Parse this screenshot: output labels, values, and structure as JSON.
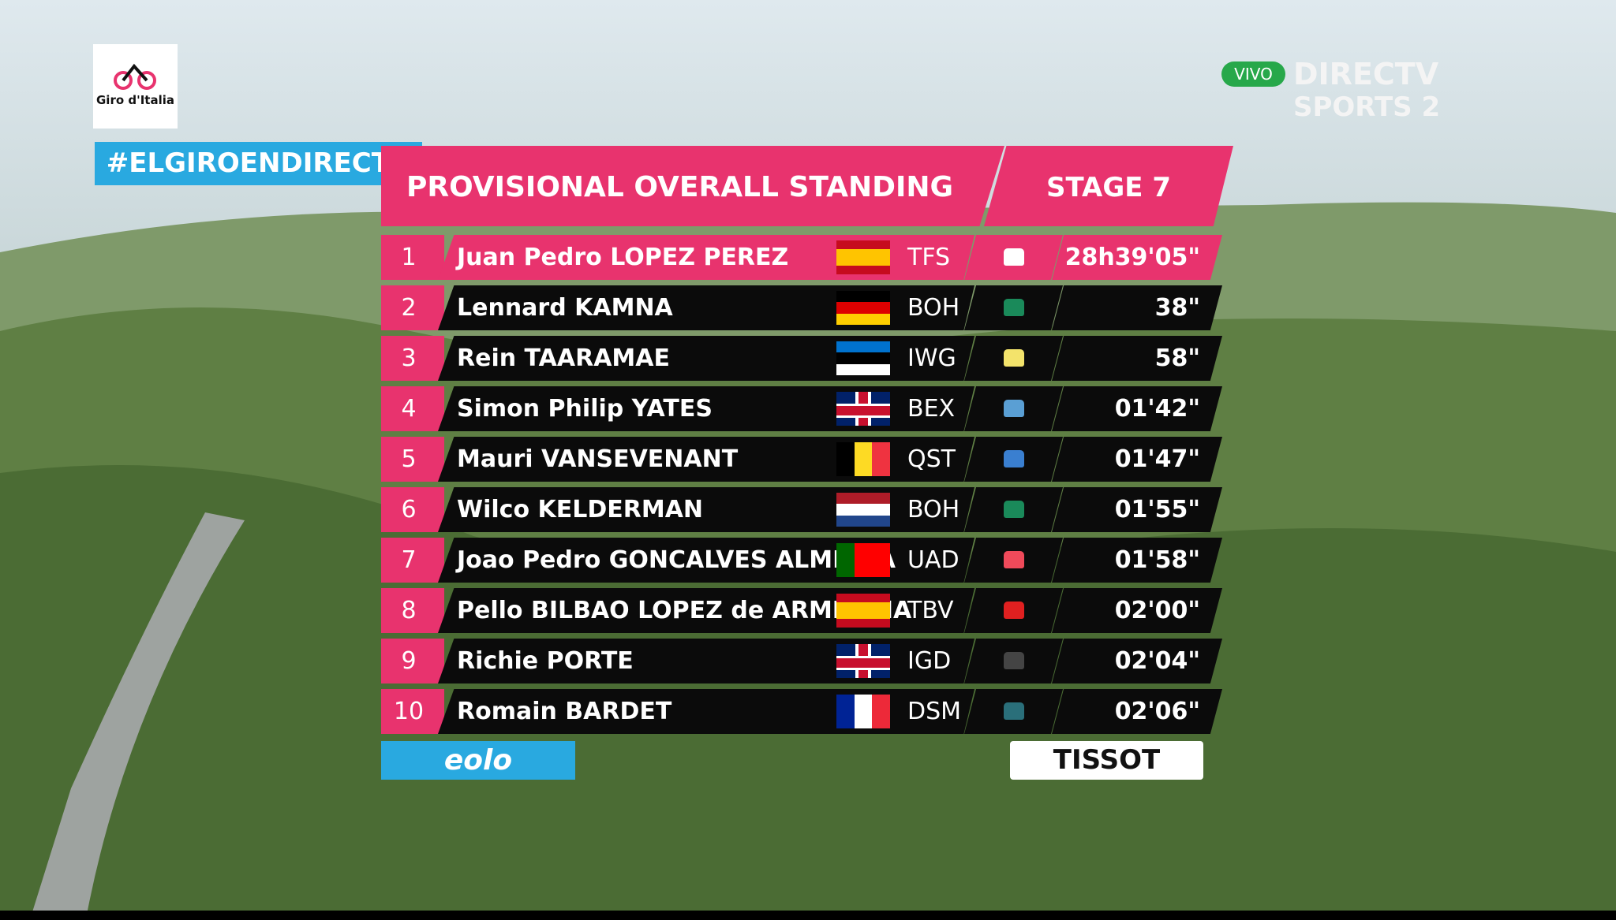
{
  "logo": {
    "text": "Giro d'Italia"
  },
  "hashtag": "#ELGIROENDIRECTV",
  "broadcaster": {
    "live": "VIVO",
    "name": "DIRECTV",
    "channel": "SPORTS 2"
  },
  "header": {
    "title": "PROVISIONAL OVERALL STANDING",
    "stage": "STAGE 7"
  },
  "table": {
    "rows": [
      {
        "rank": 1,
        "name": "Juan Pedro LOPEZ PEREZ",
        "team": "TFS",
        "time": "28h39'05\""
      },
      {
        "rank": 2,
        "name": "Lennard KAMNA",
        "team": "BOH",
        "time": "38\""
      },
      {
        "rank": 3,
        "name": "Rein TAARAMAE",
        "team": "IWG",
        "time": "58\""
      },
      {
        "rank": 4,
        "name": "Simon Philip YATES",
        "team": "BEX",
        "time": "01'42\""
      },
      {
        "rank": 5,
        "name": "Mauri VANSEVENANT",
        "team": "QST",
        "time": "01'47\""
      },
      {
        "rank": 6,
        "name": "Wilco KELDERMAN",
        "team": "BOH",
        "time": "01'55\""
      },
      {
        "rank": 7,
        "name": "Joao Pedro GONCALVES ALMEIDA",
        "team": "UAD",
        "time": "01'58\""
      },
      {
        "rank": 8,
        "name": "Pello BILBAO LOPEZ de ARMENTIA",
        "team": "TBV",
        "time": "02'00\""
      },
      {
        "rank": 9,
        "name": "Richie PORTE",
        "team": "IGD",
        "time": "02'04\""
      },
      {
        "rank": 10,
        "name": "Romain BARDET",
        "team": "DSM",
        "time": "02'06\""
      }
    ]
  },
  "sponsors": {
    "left": "eolo",
    "right": "TISSOT"
  }
}
